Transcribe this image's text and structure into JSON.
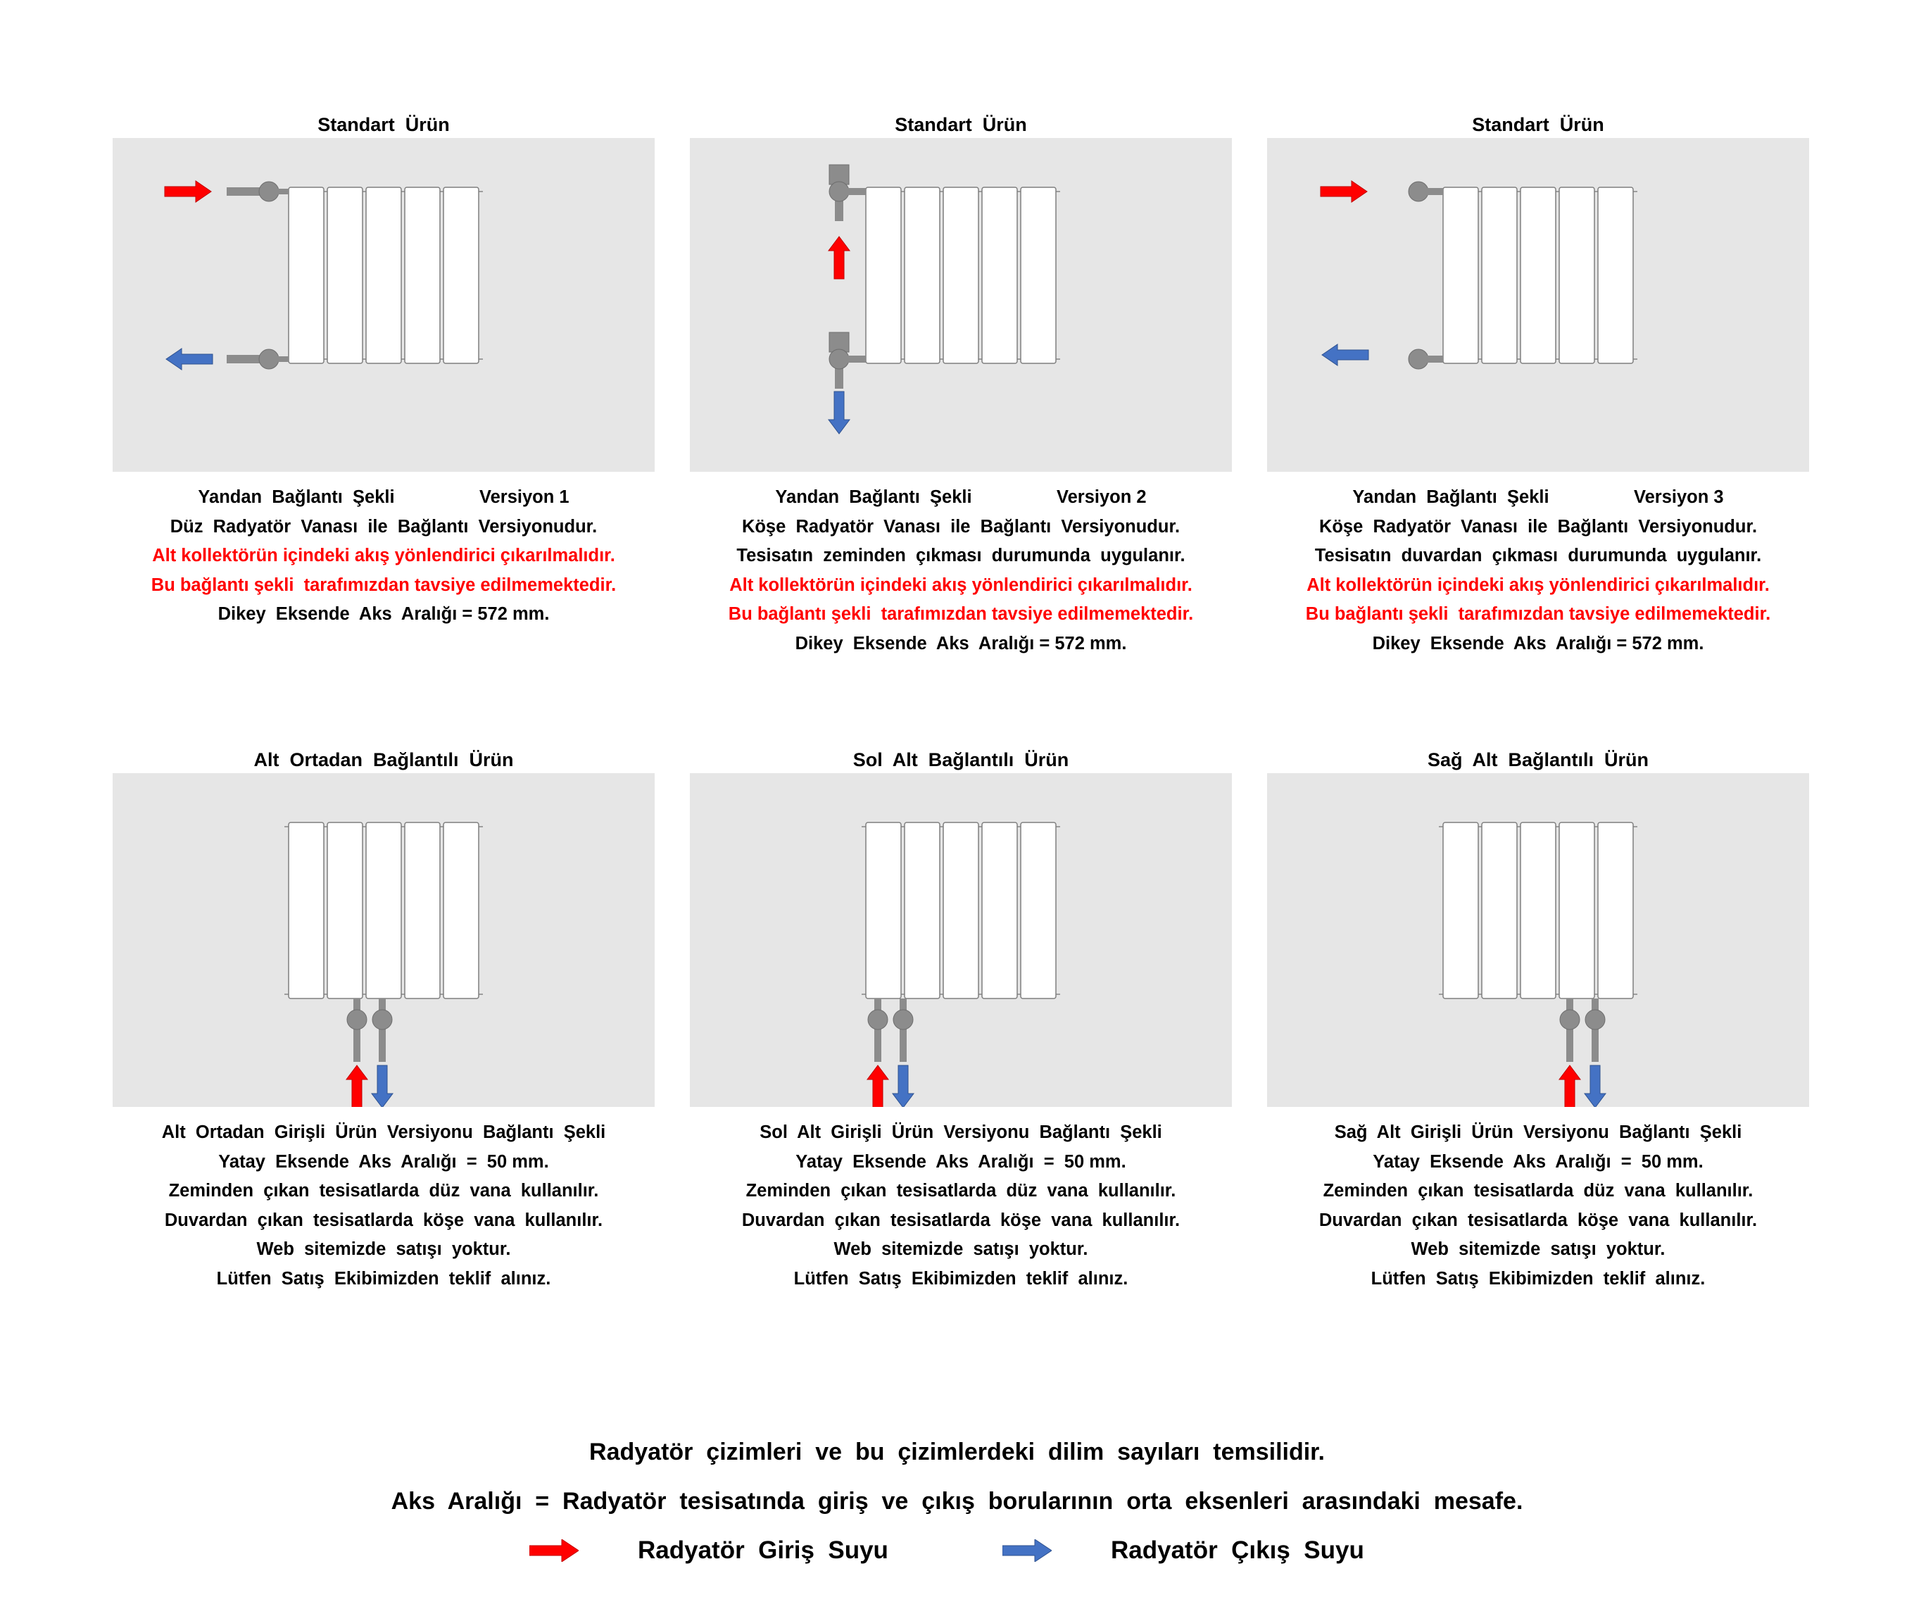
{
  "cards": [
    {
      "title": "Standart  Ürün",
      "variant": "side-straight",
      "lines": [
        {
          "text": "Yandan  Bağlantı  Şekli                 Versiyon 1",
          "red": false
        },
        {
          "text": "Düz  Radyatör  Vanası  ile  Bağlantı  Versiyonudur.",
          "red": false
        },
        {
          "text": "Alt kollektörün içindeki akış yönlendirici çıkarılmalıdır.",
          "red": true
        },
        {
          "text": "Bu bağlantı şekli  tarafımızdan tavsiye edilmemektedir.",
          "red": true
        },
        {
          "text": "Dikey  Eksende  Aks  Aralığı = 572 mm.",
          "red": false
        }
      ]
    },
    {
      "title": "Standart  Ürün",
      "variant": "side-corner-floor",
      "lines": [
        {
          "text": "Yandan  Bağlantı  Şekli                 Versiyon 2",
          "red": false
        },
        {
          "text": "Köşe  Radyatör  Vanası  ile  Bağlantı  Versiyonudur.",
          "red": false
        },
        {
          "text": "Tesisatın  zeminden  çıkması  durumunda  uygulanır.",
          "red": false
        },
        {
          "text": "Alt kollektörün içindeki akış yönlendirici çıkarılmalıdır.",
          "red": true
        },
        {
          "text": "Bu bağlantı şekli  tarafımızdan tavsiye edilmemektedir.",
          "red": true
        },
        {
          "text": "Dikey  Eksende  Aks  Aralığı = 572 mm.",
          "red": false
        }
      ]
    },
    {
      "title": "Standart  Ürün",
      "variant": "side-corner-wall",
      "lines": [
        {
          "text": "Yandan  Bağlantı  Şekli                 Versiyon 3",
          "red": false
        },
        {
          "text": "Köşe  Radyatör  Vanası  ile  Bağlantı  Versiyonudur.",
          "red": false
        },
        {
          "text": "Tesisatın  duvardan  çıkması  durumunda  uygulanır.",
          "red": false
        },
        {
          "text": "Alt kollektörün içindeki akış yönlendirici çıkarılmalıdır.",
          "red": true
        },
        {
          "text": "Bu bağlantı şekli  tarafımızdan tavsiye edilmemektedir.",
          "red": true
        },
        {
          "text": "Dikey  Eksende  Aks  Aralığı = 572 mm.",
          "red": false
        }
      ]
    },
    {
      "title": "Alt  Ortadan  Bağlantılı  Ürün",
      "variant": "bottom-middle",
      "lines": [
        {
          "text": "Alt  Ortadan  Girişli  Ürün  Versiyonu  Bağlantı  Şekli",
          "red": false
        },
        {
          "text": "Yatay  Eksende  Aks  Aralığı  =  50 mm.",
          "red": false
        },
        {
          "text": "Zeminden  çıkan  tesisatlarda  düz  vana  kullanılır.",
          "red": false
        },
        {
          "text": "Duvardan  çıkan  tesisatlarda  köşe  vana  kullanılır.",
          "red": false
        },
        {
          "text": "Web  sitemizde  satışı  yoktur.",
          "red": false
        },
        {
          "text": "Lütfen  Satış  Ekibimizden  teklif  alınız.",
          "red": false
        }
      ]
    },
    {
      "title": "Sol  Alt  Bağlantılı  Ürün",
      "variant": "bottom-left",
      "lines": [
        {
          "text": "Sol  Alt  Girişli  Ürün  Versiyonu  Bağlantı  Şekli",
          "red": false
        },
        {
          "text": "Yatay  Eksende  Aks  Aralığı  =  50 mm.",
          "red": false
        },
        {
          "text": "Zeminden  çıkan  tesisatlarda  düz  vana  kullanılır.",
          "red": false
        },
        {
          "text": "Duvardan  çıkan  tesisatlarda  köşe  vana  kullanılır.",
          "red": false
        },
        {
          "text": "Web  sitemizde  satışı  yoktur.",
          "red": false
        },
        {
          "text": "Lütfen  Satış  Ekibimizden  teklif  alınız.",
          "red": false
        }
      ]
    },
    {
      "title": "Sağ  Alt  Bağlantılı  Ürün",
      "variant": "bottom-right",
      "lines": [
        {
          "text": "Sağ  Alt  Girişli  Ürün  Versiyonu  Bağlantı  Şekli",
          "red": false
        },
        {
          "text": "Yatay  Eksende  Aks  Aralığı  =  50 mm.",
          "red": false
        },
        {
          "text": "Zeminden  çıkan  tesisatlarda  düz  vana  kullanılır.",
          "red": false
        },
        {
          "text": "Duvardan  çıkan  tesisatlarda  köşe  vana  kullanılır.",
          "red": false
        },
        {
          "text": "Web  sitemizde  satışı  yoktur.",
          "red": false
        },
        {
          "text": "Lütfen  Satış  Ekibimizden  teklif  alınız.",
          "red": false
        }
      ]
    }
  ],
  "footer": {
    "note": "Radyatör  çizimleri  ve  bu  çizimlerdeki  dilim  sayıları  temsilidir.",
    "definition": "Aks  Aralığı  =  Radyatör  tesisatında  giriş  ve  çıkış  borularının  orta  eksenleri  arasındaki  mesafe."
  },
  "legend": {
    "inlet_label": "Radyatör  Giriş  Suyu",
    "outlet_label": "Radyatör  Çıkış  Suyu"
  },
  "colors": {
    "inlet": "#ff0000",
    "outlet": "#4472c4",
    "panel_bg": "#e6e6e6",
    "pipe": "#8c8c8c",
    "warning_text": "#ff0000"
  },
  "icons": {
    "inlet_arrow": "red-arrow-icon",
    "outlet_arrow": "blue-arrow-icon"
  }
}
